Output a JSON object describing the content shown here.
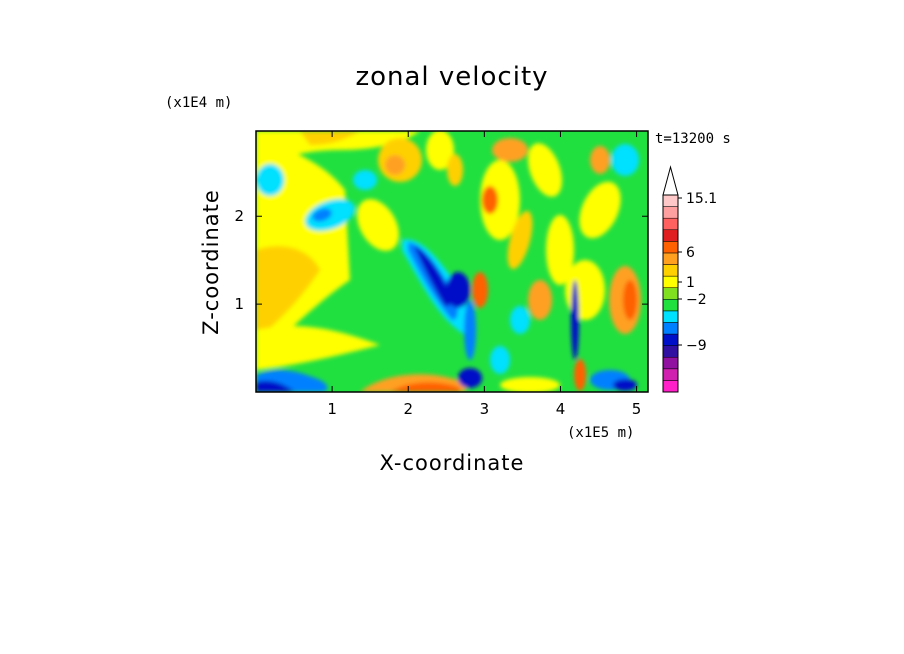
{
  "chart_data": {
    "type": "heatmap",
    "title": "zonal velocity",
    "xlabel": "X-coordinate",
    "ylabel": "Z-coordinate",
    "x_scale_note": "(x1E5 m)",
    "y_scale_note": "(x1E4 m)",
    "time_label": "t=13200 s",
    "xlim": [
      0,
      5.15
    ],
    "ylim": [
      0,
      2.97
    ],
    "x_ticks": [
      "1",
      "2",
      "3",
      "4",
      "5"
    ],
    "x_tick_values": [
      1,
      2,
      3,
      4,
      5
    ],
    "y_ticks": [
      "1",
      "2"
    ],
    "y_tick_values": [
      1,
      2
    ],
    "colorbar": {
      "labels": [
        "15.1",
        "6",
        "1",
        "−2",
        "−9"
      ],
      "label_values": [
        15.1,
        6,
        1,
        -2,
        -9
      ],
      "colors": [
        "#ff20c8",
        "#d020b0",
        "#9010a0",
        "#3010a0",
        "#0010c8",
        "#0080ff",
        "#00e0ff",
        "#20e040",
        "#80e020",
        "#ffff00",
        "#ffd000",
        "#ffa020",
        "#ff6000",
        "#e02020",
        "#ff6060",
        "#ffa0a0",
        "#ffc8c8"
      ]
    },
    "field_description_values": {
      "min_approx": -12,
      "max_approx": 15.1
    }
  }
}
